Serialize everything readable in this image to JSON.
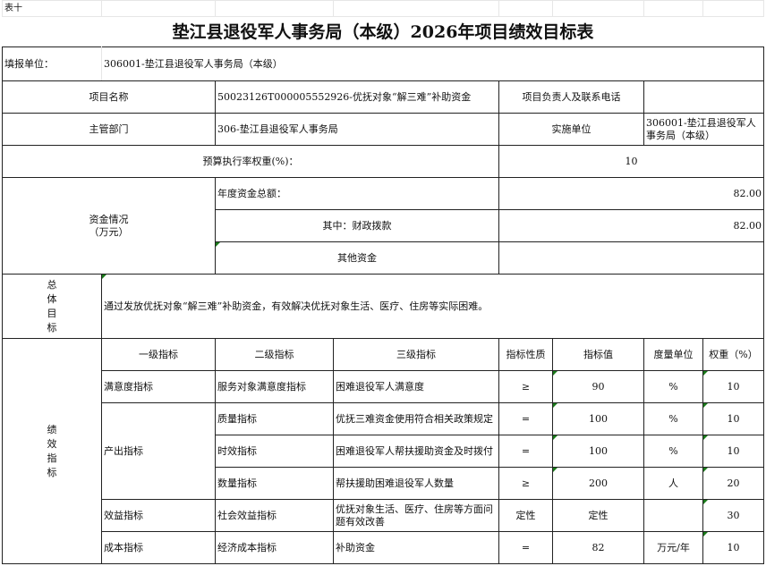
{
  "sheet_label": "表十",
  "title": "垫江县退役军人事务局（本级）2026年项目绩效目标表",
  "reporting_unit": {
    "label": "填报单位：",
    "value": "306001-垫江县退役军人事务局（本级）"
  },
  "project_name": {
    "label": "项目名称",
    "value": "50023126T000005552926-优抚对象“解三难”补助资金"
  },
  "project_contact": {
    "label": "项目负责人及联系电话",
    "value": ""
  },
  "department": {
    "label": "主管部门",
    "value": "306-垫江县退役军人事务局"
  },
  "implementer": {
    "label": "实施单位",
    "value": "306001-垫江县退役军人事务局（本级）"
  },
  "budget_weight": {
    "label": "预算执行率权重(%)：",
    "value": "10"
  },
  "funds": {
    "label": "资金情况\n（万元）",
    "total_label": "年度资金总额：",
    "total": "82.00",
    "fiscal_label": "其中：财政拨款",
    "fiscal": "82.00",
    "other_label": "其他资金",
    "other": ""
  },
  "objective": {
    "label": "总\n体\n目\n标",
    "text": "通过发放优抚对象“解三难”补助资金，有效解决优抚对象生活、医疗、住房等实际困难。"
  },
  "indicators": {
    "label": "绩\n效\n指\n标",
    "headers": [
      "一级指标",
      "二级指标",
      "三级指标",
      "指标性质",
      "指标值",
      "度量单位",
      "权重（%）"
    ],
    "rows": [
      {
        "l1": "满意度指标",
        "l2": "服务对象满意度指标",
        "l3": "困难退役军人满意度",
        "nature": "≥",
        "value": "90",
        "unit": "%",
        "weight": "10"
      },
      {
        "l1": "产出指标",
        "l2": "质量指标",
        "l3": "优抚三难资金使用符合相关政策规定",
        "nature": "=",
        "value": "100",
        "unit": "%",
        "weight": "10"
      },
      {
        "l1": "",
        "l2": "时效指标",
        "l3": "困难退役军人帮扶援助资金及时拨付",
        "nature": "=",
        "value": "100",
        "unit": "%",
        "weight": "10"
      },
      {
        "l1": "",
        "l2": "数量指标",
        "l3": "帮扶援助困难退役军人数量",
        "nature": "≥",
        "value": "200",
        "unit": "人",
        "weight": "20"
      },
      {
        "l1": "效益指标",
        "l2": "社会效益指标",
        "l3": "优抚对象生活、医疗、住房等方面问题有效改善",
        "nature": "定性",
        "value": "定性",
        "unit": "",
        "weight": "30"
      },
      {
        "l1": "成本指标",
        "l2": "经济成本指标",
        "l3": "补助资金",
        "nature": "=",
        "value": "82",
        "unit": "万元/年",
        "weight": "10"
      }
    ]
  }
}
